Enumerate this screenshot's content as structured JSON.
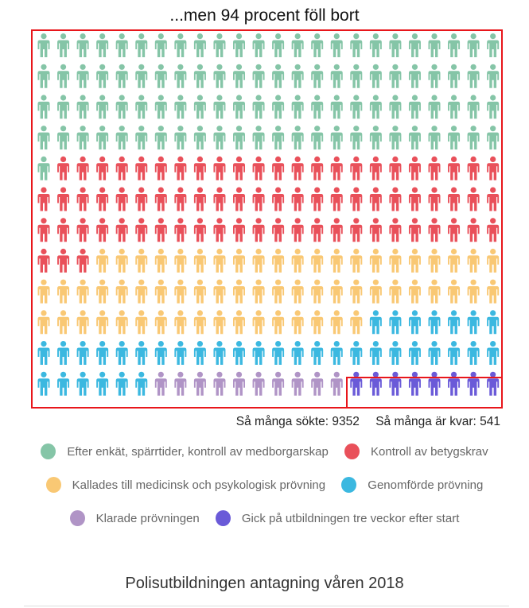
{
  "chart_data": {
    "type": "pictogram",
    "title": "...men 94 procent föll bort",
    "columns": 24,
    "rows": 12,
    "series": [
      {
        "name": "Efter enkät, spärrtider, kontroll av medborgarskap",
        "count": 97,
        "color": "#85c5a7"
      },
      {
        "name": "Kontroll av betygskrav",
        "count": 74,
        "color": "#e9505a"
      },
      {
        "name": "Kallades till medicinsk och psykologisk prövning",
        "count": 62,
        "color": "#f9c874"
      },
      {
        "name": "Genomförde prövning",
        "count": 37,
        "color": "#3bb8e0"
      },
      {
        "name": "Klarade prövningen",
        "count": 10,
        "color": "#b094c6"
      },
      {
        "name": "Gick på utbildningen tre veckor efter start",
        "count": 8,
        "color": "#6a5ad8"
      }
    ],
    "highlight_color": "#e8161b"
  },
  "stats": {
    "applied": "Så många sökte: 9352",
    "remaining": "Så många är kvar: 541"
  },
  "footer": "Polisutbildningen antagning våren 2018"
}
